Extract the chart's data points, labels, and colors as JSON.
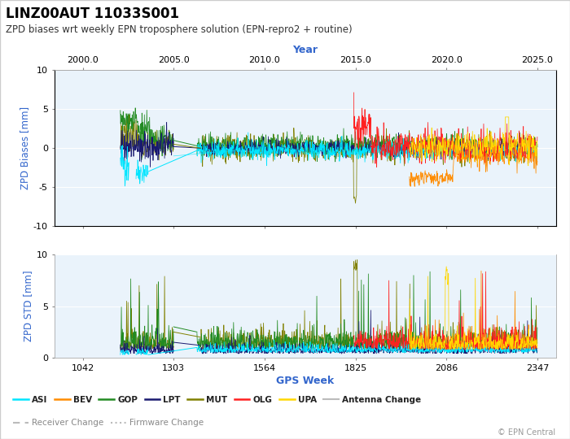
{
  "title": "LINZ00AUT 11033S001",
  "subtitle": "ZPD biases wrt weekly EPN troposphere solution (EPN-repro2 + routine)",
  "xlabel_bottom": "GPS Week",
  "xlabel_top": "Year",
  "ylabel_top": "ZPD Biases [mm]",
  "ylabel_bottom": "ZPD STD [mm]",
  "gps_week_min": 960,
  "gps_week_max": 2400,
  "gps_week_ticks": [
    1042,
    1303,
    1564,
    1825,
    2086,
    2347
  ],
  "year_labels": [
    "2000.0",
    "2005.0",
    "2010.0",
    "2015.0",
    "2020.0",
    "2025.0"
  ],
  "ylim_bias": [
    -10,
    10
  ],
  "ylim_std": [
    0,
    10
  ],
  "yticks_bias": [
    -10,
    -5,
    0,
    5,
    10
  ],
  "yticks_std": [
    0,
    5,
    10
  ],
  "colors": {
    "ASI": "#00E5FF",
    "BEV": "#FF8C00",
    "GOP": "#228B22",
    "LPT": "#191970",
    "MUT": "#808000",
    "OLG": "#FF2020",
    "UPA": "#FFD700"
  },
  "legend_entries": [
    "ASI",
    "BEV",
    "GOP",
    "LPT",
    "MUT",
    "OLG",
    "UPA"
  ],
  "antenna_change_color": "#BBBBBB",
  "receiver_change_color": "#BBBBBB",
  "firmware_change_color": "#BBBBBB",
  "plot_bg_color": "#EAF3FB",
  "copyright": "© EPN Central",
  "seed": 42
}
